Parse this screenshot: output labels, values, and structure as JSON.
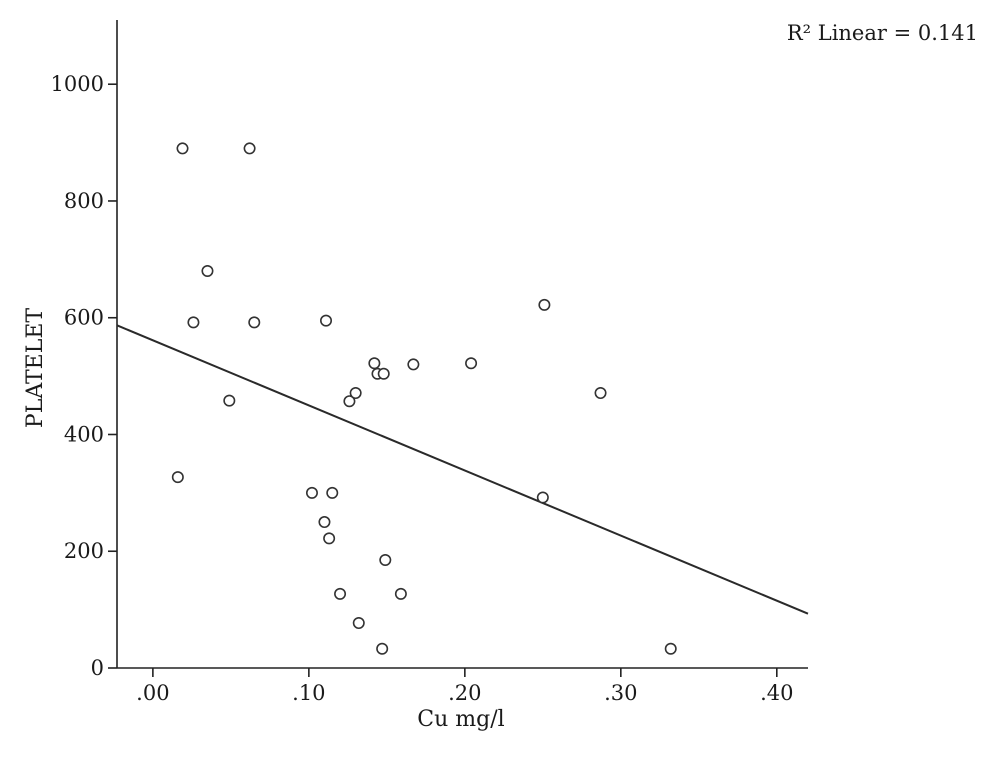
{
  "chart_data": {
    "type": "scatter",
    "title": "",
    "xlabel": "Cu mg/l",
    "ylabel": "PLATELET",
    "annotation": "R² Linear = 0.141",
    "xlim": [
      -0.023,
      0.42
    ],
    "ylim": [
      0,
      1110
    ],
    "x_ticks": [
      0.0,
      0.1,
      0.2,
      0.3,
      0.4
    ],
    "x_tick_labels": [
      ".00",
      ".10",
      ".20",
      ".30",
      ".40"
    ],
    "y_ticks": [
      0,
      200,
      400,
      600,
      800,
      1000
    ],
    "y_tick_labels": [
      "0",
      "200",
      "400",
      "600",
      "800",
      "1000"
    ],
    "grid": false,
    "points": [
      {
        "x": 0.019,
        "y": 890
      },
      {
        "x": 0.062,
        "y": 890
      },
      {
        "x": 0.035,
        "y": 680
      },
      {
        "x": 0.026,
        "y": 592
      },
      {
        "x": 0.065,
        "y": 592
      },
      {
        "x": 0.111,
        "y": 595
      },
      {
        "x": 0.049,
        "y": 458
      },
      {
        "x": 0.016,
        "y": 327
      },
      {
        "x": 0.102,
        "y": 300
      },
      {
        "x": 0.115,
        "y": 300
      },
      {
        "x": 0.11,
        "y": 250
      },
      {
        "x": 0.113,
        "y": 222
      },
      {
        "x": 0.12,
        "y": 127
      },
      {
        "x": 0.132,
        "y": 77
      },
      {
        "x": 0.147,
        "y": 33
      },
      {
        "x": 0.149,
        "y": 185
      },
      {
        "x": 0.159,
        "y": 127
      },
      {
        "x": 0.126,
        "y": 457
      },
      {
        "x": 0.13,
        "y": 471
      },
      {
        "x": 0.142,
        "y": 522
      },
      {
        "x": 0.144,
        "y": 504
      },
      {
        "x": 0.148,
        "y": 504
      },
      {
        "x": 0.167,
        "y": 520
      },
      {
        "x": 0.204,
        "y": 522
      },
      {
        "x": 0.251,
        "y": 622
      },
      {
        "x": 0.25,
        "y": 292
      },
      {
        "x": 0.287,
        "y": 471
      },
      {
        "x": 0.332,
        "y": 33
      }
    ],
    "fit_line": {
      "x": [
        -0.023,
        0.42
      ],
      "y": [
        587,
        93
      ]
    }
  }
}
